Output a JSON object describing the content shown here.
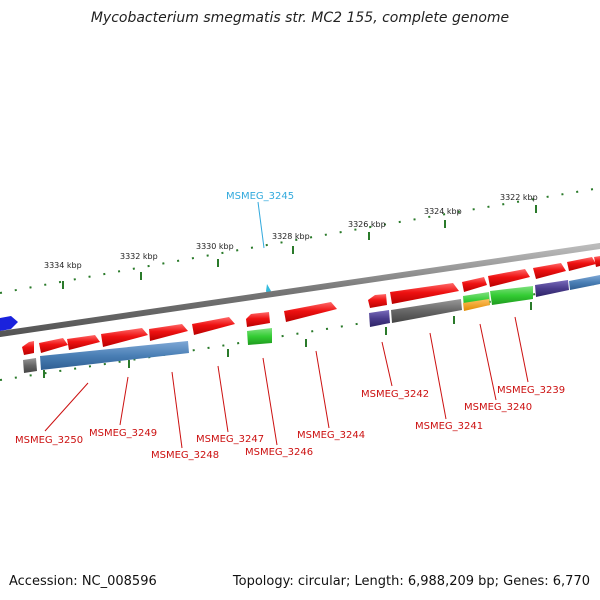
{
  "title": "Mycobacterium smegmatis str. MC2 155, complete genome",
  "accession": "Accession: NC_008596",
  "stats": "Topology: circular; Length: 6,988,209 bp; Genes: 6,770",
  "colors": {
    "gene_red": "#ee1111",
    "backbone": "#888888",
    "tick": "#2a7a2a",
    "highlight": "#33bbdd",
    "blue_track": "#4a7fb5",
    "green": "#33cc33",
    "purple": "#4a3c8c",
    "gray": "#666666",
    "orange": "#f39c12",
    "strand_blue": "#1a22dd"
  },
  "kbp_ticks": [
    {
      "label": "3322 kbp"
    },
    {
      "label": "3324 kbp"
    },
    {
      "label": "3326 kbp"
    },
    {
      "label": "3328 kbp"
    },
    {
      "label": "3330 kbp"
    },
    {
      "label": "3332 kbp"
    },
    {
      "label": "3334 kbp"
    }
  ],
  "highlight_gene": "MSMEG_3245",
  "gene_labels": [
    {
      "label": "MSMEG_3250"
    },
    {
      "label": "MSMEG_3249"
    },
    {
      "label": "MSMEG_3248"
    },
    {
      "label": "MSMEG_3247"
    },
    {
      "label": "MSMEG_3246"
    },
    {
      "label": "MSMEG_3244"
    },
    {
      "label": "MSMEG_3242"
    },
    {
      "label": "MSMEG_3241"
    },
    {
      "label": "MSMEG_3240"
    },
    {
      "label": "MSMEG_3239"
    }
  ]
}
